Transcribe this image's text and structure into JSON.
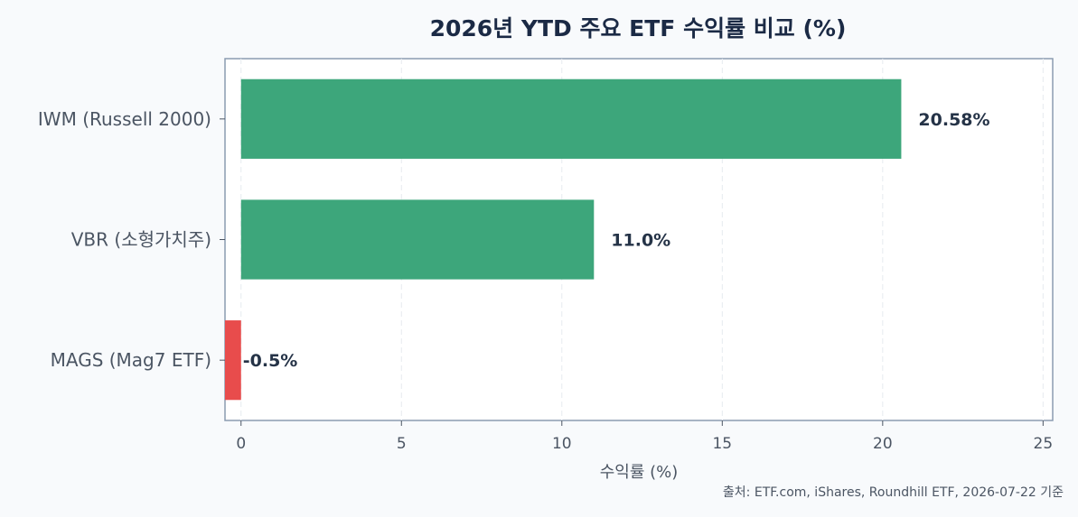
{
  "chart_data": {
    "type": "bar",
    "orientation": "horizontal",
    "title": "2026년 YTD 주요 ETF 수익률 비교 (%)",
    "xlabel": "수익률 (%)",
    "ylabel": "",
    "categories": [
      "IWM (Russell 2000)",
      "VBR (소형가치주)",
      "MAGS (Mag7 ETF)"
    ],
    "values": [
      20.58,
      11.0,
      -0.5
    ],
    "value_labels": [
      "20.58%",
      "11.0%",
      "-0.5%"
    ],
    "xlim": [
      -0.5,
      25.3
    ],
    "xticks": [
      0,
      5,
      10,
      15,
      20,
      25
    ],
    "grid": "vertical dashed",
    "colors": {
      "positive": "#3da67b",
      "negative": "#e84c4c"
    },
    "source": "출처: ETF.com, iShares, Roundhill ETF, 2026-07-22 기준"
  }
}
